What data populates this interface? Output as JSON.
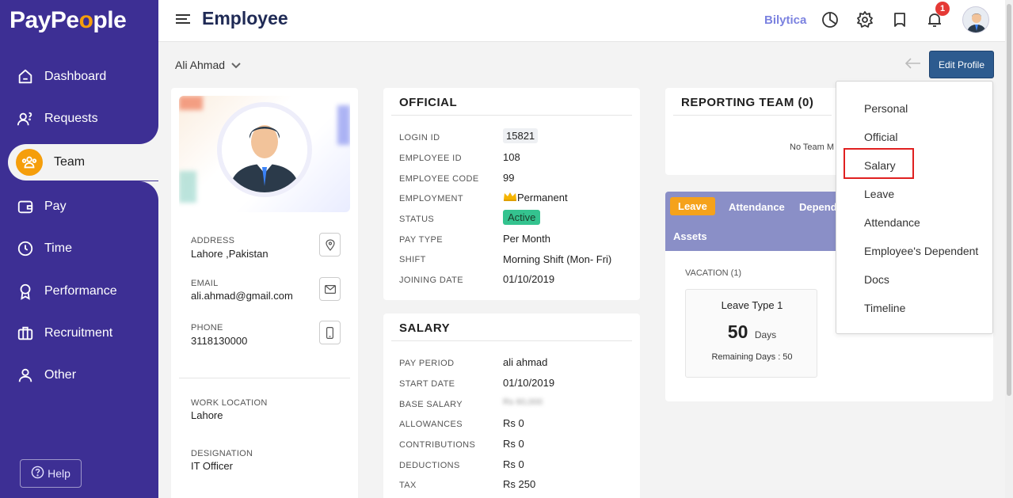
{
  "sidebar": {
    "logo_text_a": "PayPe",
    "logo_text_o": "o",
    "logo_text_b": "ple",
    "items": [
      {
        "label": "Dashboard",
        "icon": "dashboard-icon"
      },
      {
        "label": "Requests",
        "icon": "requests-icon"
      },
      {
        "label": "Team",
        "icon": "team-icon",
        "active": true
      },
      {
        "label": "Pay",
        "icon": "pay-icon"
      },
      {
        "label": "Time",
        "icon": "clock-icon"
      },
      {
        "label": "Performance",
        "icon": "award-icon"
      },
      {
        "label": "Recruitment",
        "icon": "briefcase-icon"
      },
      {
        "label": "Other",
        "icon": "user-icon"
      }
    ],
    "help_label": "Help"
  },
  "header": {
    "title": "Employee",
    "brand": "Bilytica",
    "notification_count": "1"
  },
  "subbar": {
    "employee_name": "Ali Ahmad",
    "edit_label": "Edit Profile"
  },
  "profile": {
    "address_label": "ADDRESS",
    "address": "Lahore ,Pakistan",
    "email_label": "EMAIL",
    "email": "ali.ahmad@gmail.com",
    "phone_label": "PHONE",
    "phone": "3118130000",
    "work_location_label": "WORK LOCATION",
    "work_location": "Lahore",
    "designation_label": "DESIGNATION",
    "designation": "IT Officer"
  },
  "official": {
    "title": "OFFICIAL",
    "rows": [
      {
        "label": "LOGIN ID",
        "value": "15821"
      },
      {
        "label": "EMPLOYEE ID",
        "value": "108"
      },
      {
        "label": "EMPLOYEE CODE",
        "value": "99"
      },
      {
        "label": "EMPLOYMENT",
        "value": "Permanent"
      },
      {
        "label": "STATUS",
        "value": "Active"
      },
      {
        "label": "PAY TYPE",
        "value": "Per Month"
      },
      {
        "label": "SHIFT",
        "value": "Morning Shift (Mon- Fri)"
      },
      {
        "label": "JOINING DATE",
        "value": "01/10/2019"
      }
    ]
  },
  "salary": {
    "title": "SALARY",
    "rows": [
      {
        "label": "PAY PERIOD",
        "value": "ali ahmad"
      },
      {
        "label": "START DATE",
        "value": "01/10/2019"
      },
      {
        "label": "BASE SALARY",
        "value": "Rs 60,000"
      },
      {
        "label": "ALLOWANCES",
        "value": "Rs 0"
      },
      {
        "label": "CONTRIBUTIONS",
        "value": "Rs 0"
      },
      {
        "label": "DEDUCTIONS",
        "value": "Rs 0"
      },
      {
        "label": "TAX",
        "value": "Rs 250"
      }
    ]
  },
  "reporting": {
    "title": "REPORTING TEAM (0)",
    "empty": "No Team M"
  },
  "leave": {
    "tabs": [
      "Leave",
      "Attendance",
      "Depend",
      "Assets"
    ],
    "vacation_label": "VACATION (1)",
    "box_title": "Leave Type 1",
    "days_value": "50",
    "days_unit": "Days",
    "remaining": "Remaining Days : 50"
  },
  "dropdown": {
    "items": [
      "Personal",
      "Official",
      "Salary",
      "Leave",
      "Attendance",
      "Employee's Dependent",
      "Docs",
      "Timeline"
    ]
  }
}
